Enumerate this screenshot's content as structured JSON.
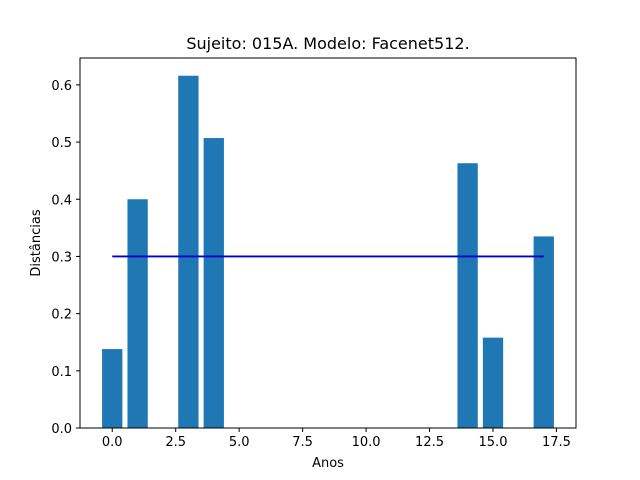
{
  "chart_data": {
    "type": "bar",
    "title": "Sujeito: 015A. Modelo: Facenet512.",
    "xlabel": "Anos",
    "ylabel": "Distâncias",
    "x": [
      0,
      1,
      3,
      4,
      14,
      15,
      17
    ],
    "values": [
      0.138,
      0.4,
      0.616,
      0.507,
      0.463,
      0.158,
      0.335
    ],
    "bar_width": 0.8,
    "bar_color": "#1f77b4",
    "threshold": {
      "value": 0.3,
      "x_range": [
        0,
        17
      ],
      "color": "#0000cc"
    },
    "xlim": [
      -1.27,
      18.27
    ],
    "ylim": [
      0,
      0.647
    ],
    "xticks": [
      0.0,
      2.5,
      5.0,
      7.5,
      10.0,
      12.5,
      15.0,
      17.5
    ],
    "xtick_labels": [
      "0.0",
      "2.5",
      "5.0",
      "7.5",
      "10.0",
      "12.5",
      "15.0",
      "17.5"
    ],
    "yticks": [
      0.0,
      0.1,
      0.2,
      0.3,
      0.4,
      0.5,
      0.6
    ],
    "ytick_labels": [
      "0.0",
      "0.1",
      "0.2",
      "0.3",
      "0.4",
      "0.5",
      "0.6"
    ],
    "grid": false,
    "legend": "none"
  }
}
